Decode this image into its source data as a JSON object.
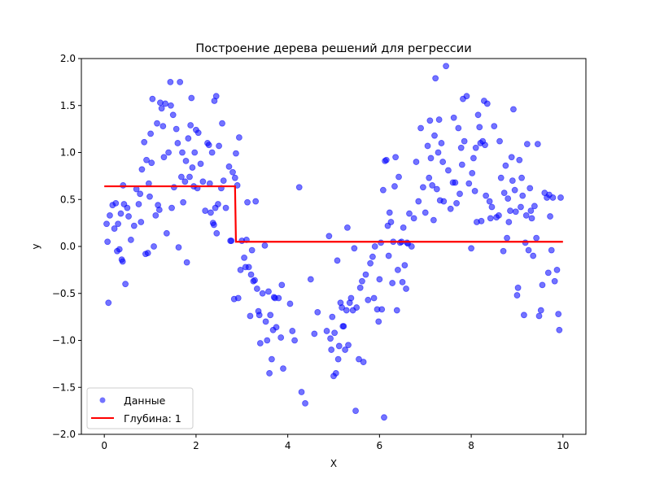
{
  "chart_data": {
    "type": "scatter",
    "title": "Построение дерева решений для регрессии",
    "xlabel": "X",
    "ylabel": "y",
    "xlim": [
      -0.5,
      10.5
    ],
    "ylim": [
      -2.0,
      2.0
    ],
    "x_ticks": [
      0,
      2,
      4,
      6,
      8,
      10
    ],
    "y_ticks": [
      -2.0,
      -1.5,
      -1.0,
      -0.5,
      0.0,
      0.5,
      1.0,
      1.5,
      2.0
    ],
    "x_tick_labels": [
      "0",
      "2",
      "4",
      "6",
      "8",
      "10"
    ],
    "y_tick_labels": [
      "−2.0",
      "−1.5",
      "−1.0",
      "−0.5",
      "0.0",
      "0.5",
      "1.0",
      "1.5",
      "2.0"
    ],
    "grid": false,
    "legend_position": "lower-left",
    "series": [
      {
        "name": "Данные",
        "kind": "scatter",
        "color": "#0000ff",
        "alpha": 0.55,
        "points": [
          [
            0.05,
            0.24
          ],
          [
            0.07,
            0.05
          ],
          [
            0.09,
            -0.6
          ],
          [
            0.12,
            0.33
          ],
          [
            0.18,
            0.44
          ],
          [
            0.22,
            0.19
          ],
          [
            0.25,
            0.46
          ],
          [
            0.28,
            -0.05
          ],
          [
            0.3,
            0.24
          ],
          [
            0.33,
            -0.03
          ],
          [
            0.36,
            0.35
          ],
          [
            0.38,
            -0.14
          ],
          [
            0.4,
            -0.16
          ],
          [
            0.41,
            0.65
          ],
          [
            0.43,
            0.45
          ],
          [
            0.46,
            -0.4
          ],
          [
            0.5,
            0.41
          ],
          [
            0.53,
            0.32
          ],
          [
            0.58,
            0.07
          ],
          [
            0.65,
            0.22
          ],
          [
            0.7,
            0.61
          ],
          [
            0.75,
            0.45
          ],
          [
            0.78,
            0.56
          ],
          [
            0.8,
            0.26
          ],
          [
            0.82,
            0.82
          ],
          [
            0.87,
            1.11
          ],
          [
            0.9,
            -0.08
          ],
          [
            0.92,
            0.92
          ],
          [
            0.95,
            -0.07
          ],
          [
            0.97,
            0.67
          ],
          [
            0.99,
            0.53
          ],
          [
            1.01,
            1.2
          ],
          [
            1.03,
            0.89
          ],
          [
            1.05,
            1.57
          ],
          [
            1.08,
            0.0
          ],
          [
            1.12,
            0.33
          ],
          [
            1.15,
            1.31
          ],
          [
            1.17,
            0.44
          ],
          [
            1.2,
            0.39
          ],
          [
            1.22,
            1.53
          ],
          [
            1.25,
            1.47
          ],
          [
            1.28,
            1.28
          ],
          [
            1.3,
            0.95
          ],
          [
            1.33,
            1.52
          ],
          [
            1.36,
            0.14
          ],
          [
            1.4,
            1.0
          ],
          [
            1.44,
            1.75
          ],
          [
            1.45,
            1.5
          ],
          [
            1.47,
            0.41
          ],
          [
            1.5,
            1.4
          ],
          [
            1.52,
            0.63
          ],
          [
            1.57,
            1.25
          ],
          [
            1.6,
            1.1
          ],
          [
            1.62,
            -0.01
          ],
          [
            1.65,
            1.75
          ],
          [
            1.68,
            0.74
          ],
          [
            1.7,
            1.0
          ],
          [
            1.72,
            0.47
          ],
          [
            1.76,
            0.69
          ],
          [
            1.78,
            0.91
          ],
          [
            1.8,
            -0.17
          ],
          [
            1.83,
            1.15
          ],
          [
            1.86,
            0.74
          ],
          [
            1.88,
            1.29
          ],
          [
            1.9,
            1.58
          ],
          [
            1.92,
            0.84
          ],
          [
            1.95,
            0.64
          ],
          [
            1.97,
            1.0
          ],
          [
            2.0,
            1.24
          ],
          [
            2.03,
            0.62
          ],
          [
            2.05,
            1.21
          ],
          [
            2.1,
            0.88
          ],
          [
            2.15,
            0.69
          ],
          [
            2.2,
            0.38
          ],
          [
            2.25,
            1.1
          ],
          [
            2.28,
            1.08
          ],
          [
            2.3,
            0.67
          ],
          [
            2.32,
            0.36
          ],
          [
            2.35,
            1.0
          ],
          [
            2.37,
            0.25
          ],
          [
            2.39,
            0.23
          ],
          [
            2.4,
            1.55
          ],
          [
            2.42,
            0.41
          ],
          [
            2.44,
            1.6
          ],
          [
            2.45,
            0.14
          ],
          [
            2.48,
            0.45
          ],
          [
            2.5,
            1.07
          ],
          [
            2.55,
            0.62
          ],
          [
            2.57,
            1.31
          ],
          [
            2.6,
            0.7
          ],
          [
            2.65,
            0.41
          ],
          [
            2.72,
            0.85
          ],
          [
            2.75,
            0.06
          ],
          [
            2.77,
            0.06
          ],
          [
            2.8,
            0.79
          ],
          [
            2.83,
            -0.56
          ],
          [
            2.85,
            0.73
          ],
          [
            2.87,
            0.99
          ],
          [
            2.9,
            0.65
          ],
          [
            2.92,
            -0.55
          ],
          [
            2.94,
            1.16
          ],
          [
            2.97,
            -0.25
          ],
          [
            3.0,
            0.06
          ],
          [
            3.05,
            -0.12
          ],
          [
            3.08,
            -0.22
          ],
          [
            3.1,
            0.07
          ],
          [
            3.12,
            0.47
          ],
          [
            3.15,
            -0.22
          ],
          [
            3.18,
            -0.74
          ],
          [
            3.2,
            -0.3
          ],
          [
            3.22,
            -0.04
          ],
          [
            3.25,
            -0.37
          ],
          [
            3.28,
            -0.36
          ],
          [
            3.3,
            0.48
          ],
          [
            3.33,
            -0.45
          ],
          [
            3.36,
            -0.69
          ],
          [
            3.38,
            -0.73
          ],
          [
            3.4,
            -1.03
          ],
          [
            3.45,
            -0.5
          ],
          [
            3.5,
            0.01
          ],
          [
            3.52,
            -0.8
          ],
          [
            3.55,
            -1.0
          ],
          [
            3.58,
            -0.48
          ],
          [
            3.6,
            -1.35
          ],
          [
            3.62,
            -0.73
          ],
          [
            3.65,
            -1.2
          ],
          [
            3.68,
            -0.89
          ],
          [
            3.7,
            -0.54
          ],
          [
            3.72,
            -0.55
          ],
          [
            3.75,
            -0.86
          ],
          [
            3.8,
            -0.55
          ],
          [
            3.85,
            -0.97
          ],
          [
            3.87,
            -0.41
          ],
          [
            3.9,
            -1.3
          ],
          [
            4.05,
            -0.61
          ],
          [
            4.1,
            -0.9
          ],
          [
            4.15,
            -1.0
          ],
          [
            4.25,
            0.63
          ],
          [
            4.3,
            -1.55
          ],
          [
            4.38,
            -1.67
          ],
          [
            4.5,
            -0.35
          ],
          [
            4.58,
            -0.93
          ],
          [
            4.65,
            -0.7
          ],
          [
            4.85,
            -0.9
          ],
          [
            4.9,
            0.11
          ],
          [
            4.93,
            -0.98
          ],
          [
            4.95,
            -1.1
          ],
          [
            4.97,
            -0.75
          ],
          [
            5.0,
            -1.38
          ],
          [
            5.02,
            -0.92
          ],
          [
            5.05,
            -1.35
          ],
          [
            5.08,
            -0.15
          ],
          [
            5.1,
            -1.2
          ],
          [
            5.12,
            -1.06
          ],
          [
            5.15,
            -0.6
          ],
          [
            5.18,
            -0.65
          ],
          [
            5.2,
            -0.85
          ],
          [
            5.22,
            -0.85
          ],
          [
            5.25,
            -1.1
          ],
          [
            5.28,
            -0.68
          ],
          [
            5.3,
            0.2
          ],
          [
            5.32,
            -1.05
          ],
          [
            5.35,
            -0.6
          ],
          [
            5.38,
            -0.55
          ],
          [
            5.42,
            -0.68
          ],
          [
            5.45,
            -0.02
          ],
          [
            5.48,
            -1.75
          ],
          [
            5.5,
            -0.65
          ],
          [
            5.55,
            -1.2
          ],
          [
            5.58,
            -0.44
          ],
          [
            5.62,
            -0.37
          ],
          [
            5.65,
            -1.23
          ],
          [
            5.7,
            -0.3
          ],
          [
            5.75,
            -0.57
          ],
          [
            5.8,
            -0.18
          ],
          [
            5.85,
            -0.11
          ],
          [
            5.88,
            -0.55
          ],
          [
            5.9,
            0.0
          ],
          [
            5.95,
            -0.67
          ],
          [
            5.98,
            -0.8
          ],
          [
            6.0,
            -0.35
          ],
          [
            6.03,
            0.04
          ],
          [
            6.05,
            -0.67
          ],
          [
            6.08,
            0.6
          ],
          [
            6.1,
            -1.82
          ],
          [
            6.12,
            0.91
          ],
          [
            6.15,
            0.92
          ],
          [
            6.18,
            0.22
          ],
          [
            6.2,
            -0.1
          ],
          [
            6.22,
            0.36
          ],
          [
            6.25,
            0.26
          ],
          [
            6.28,
            -0.39
          ],
          [
            6.3,
            0.05
          ],
          [
            6.33,
            0.64
          ],
          [
            6.35,
            0.95
          ],
          [
            6.38,
            -0.68
          ],
          [
            6.4,
            -0.25
          ],
          [
            6.42,
            0.74
          ],
          [
            6.45,
            0.04
          ],
          [
            6.48,
            0.05
          ],
          [
            6.5,
            -0.38
          ],
          [
            6.52,
            0.2
          ],
          [
            6.55,
            -0.2
          ],
          [
            6.58,
            -0.45
          ],
          [
            6.6,
            0.04
          ],
          [
            6.62,
            0.03
          ],
          [
            6.65,
            0.35
          ],
          [
            6.7,
            0.0
          ],
          [
            6.75,
            0.3
          ],
          [
            6.8,
            0.9
          ],
          [
            6.85,
            0.48
          ],
          [
            6.9,
            1.26
          ],
          [
            6.95,
            0.63
          ],
          [
            7.0,
            0.36
          ],
          [
            7.05,
            1.07
          ],
          [
            7.08,
            0.73
          ],
          [
            7.1,
            1.34
          ],
          [
            7.12,
            0.94
          ],
          [
            7.15,
            0.65
          ],
          [
            7.18,
            0.28
          ],
          [
            7.2,
            1.18
          ],
          [
            7.22,
            1.79
          ],
          [
            7.25,
            0.61
          ],
          [
            7.28,
            1.0
          ],
          [
            7.3,
            1.35
          ],
          [
            7.32,
            0.49
          ],
          [
            7.35,
            1.1
          ],
          [
            7.38,
            0.9
          ],
          [
            7.4,
            0.48
          ],
          [
            7.45,
            1.92
          ],
          [
            7.5,
            0.81
          ],
          [
            7.55,
            0.4
          ],
          [
            7.6,
            0.68
          ],
          [
            7.62,
            1.37
          ],
          [
            7.65,
            0.68
          ],
          [
            7.68,
            0.46
          ],
          [
            7.72,
            1.26
          ],
          [
            7.75,
            0.56
          ],
          [
            7.78,
            1.05
          ],
          [
            7.8,
            0.87
          ],
          [
            7.82,
            1.57
          ],
          [
            7.85,
            1.12
          ],
          [
            7.9,
            1.6
          ],
          [
            7.95,
            0.67
          ],
          [
            8.0,
            -0.02
          ],
          [
            8.02,
            0.78
          ],
          [
            8.05,
            0.94
          ],
          [
            8.08,
            0.59
          ],
          [
            8.1,
            1.05
          ],
          [
            8.12,
            0.26
          ],
          [
            8.15,
            1.4
          ],
          [
            8.18,
            1.27
          ],
          [
            8.2,
            1.1
          ],
          [
            8.22,
            0.27
          ],
          [
            8.25,
            1.12
          ],
          [
            8.28,
            1.55
          ],
          [
            8.3,
            1.08
          ],
          [
            8.32,
            0.54
          ],
          [
            8.35,
            1.52
          ],
          [
            8.4,
            0.48
          ],
          [
            8.42,
            0.3
          ],
          [
            8.45,
            0.42
          ],
          [
            8.5,
            1.28
          ],
          [
            8.55,
            0.31
          ],
          [
            8.6,
            0.33
          ],
          [
            8.62,
            1.12
          ],
          [
            8.65,
            0.73
          ],
          [
            8.7,
            -0.05
          ],
          [
            8.72,
            0.57
          ],
          [
            8.75,
            0.86
          ],
          [
            8.78,
            0.09
          ],
          [
            8.8,
            0.51
          ],
          [
            8.82,
            0.26
          ],
          [
            8.85,
            0.38
          ],
          [
            8.88,
            0.95
          ],
          [
            8.9,
            0.7
          ],
          [
            8.92,
            1.46
          ],
          [
            8.95,
            0.6
          ],
          [
            8.97,
            0.37
          ],
          [
            9.0,
            -0.52
          ],
          [
            9.02,
            -0.44
          ],
          [
            9.05,
            0.92
          ],
          [
            9.08,
            0.42
          ],
          [
            9.1,
            0.73
          ],
          [
            9.12,
            0.54
          ],
          [
            9.15,
            -0.73
          ],
          [
            9.18,
            0.04
          ],
          [
            9.2,
            0.33
          ],
          [
            9.22,
            1.09
          ],
          [
            9.25,
            -0.04
          ],
          [
            9.28,
            0.62
          ],
          [
            9.3,
            0.38
          ],
          [
            9.32,
            0.3
          ],
          [
            9.35,
            -0.1
          ],
          [
            9.38,
            0.43
          ],
          [
            9.42,
            0.09
          ],
          [
            9.45,
            1.09
          ],
          [
            9.48,
            -0.74
          ],
          [
            9.52,
            -0.68
          ],
          [
            9.55,
            -0.41
          ],
          [
            9.6,
            0.57
          ],
          [
            9.65,
            0.52
          ],
          [
            9.68,
            -0.28
          ],
          [
            9.7,
            0.55
          ],
          [
            9.72,
            0.32
          ],
          [
            9.75,
            -0.04
          ],
          [
            9.78,
            0.52
          ],
          [
            9.82,
            -0.37
          ],
          [
            9.87,
            -0.25
          ],
          [
            9.9,
            -0.72
          ],
          [
            9.92,
            -0.89
          ],
          [
            9.95,
            0.52
          ]
        ]
      },
      {
        "name": "Глубина: 1",
        "kind": "step",
        "color": "#ff0000",
        "points": [
          [
            0,
            0.64
          ],
          [
            2.85,
            0.64
          ],
          [
            2.87,
            0.05
          ],
          [
            10.0,
            0.05
          ]
        ]
      }
    ]
  }
}
